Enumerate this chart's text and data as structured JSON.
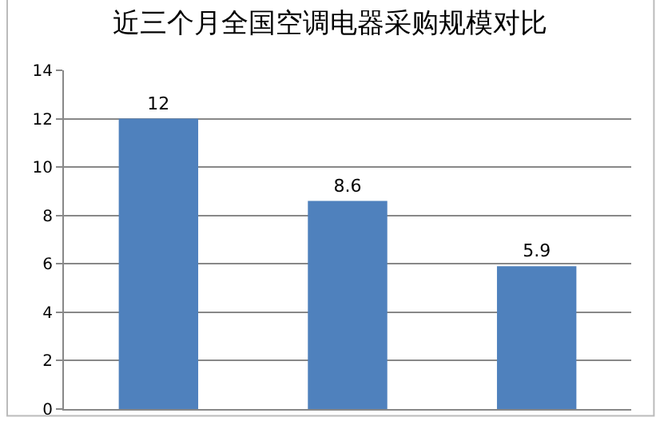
{
  "chart_data": {
    "type": "bar",
    "title": "近三个月全国空调电器采购规模对比",
    "categories": [
      null,
      null,
      null
    ],
    "values": [
      12,
      8.6,
      5.9
    ],
    "color": "#4f81bd",
    "ylim": [
      0,
      14
    ],
    "yticks": [
      0,
      2,
      4,
      6,
      8,
      10,
      12,
      14
    ],
    "grid": "y",
    "data_labels": true
  }
}
